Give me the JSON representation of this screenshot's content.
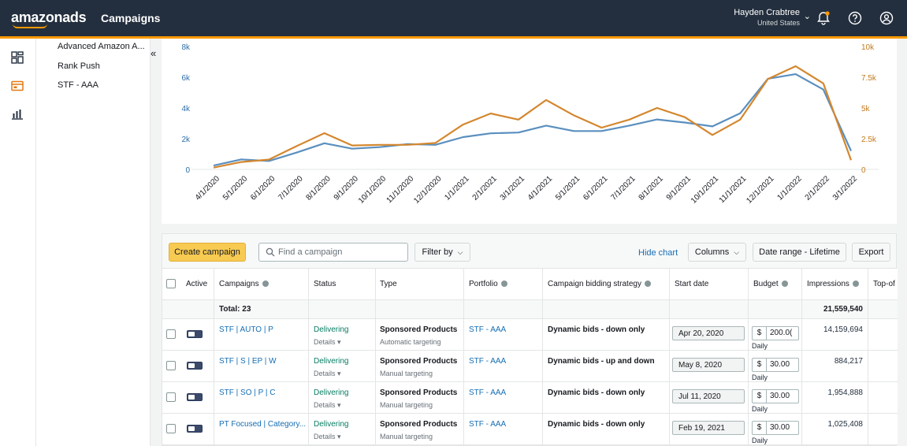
{
  "header": {
    "logo": "amazonads",
    "title": "Campaigns",
    "user_name": "Hayden Crabtree",
    "user_country": "United States"
  },
  "sidebar": {
    "items": [
      {
        "label": "Advanced Amazon A..."
      },
      {
        "label": "Rank Push"
      },
      {
        "label": "STF - AAA"
      }
    ]
  },
  "chart_data": {
    "type": "line",
    "x": [
      "4/1/2020",
      "5/1/2020",
      "6/1/2020",
      "7/1/2020",
      "8/1/2020",
      "9/1/2020",
      "10/1/2020",
      "11/1/2020",
      "12/1/2020",
      "1/1/2021",
      "2/1/2021",
      "3/1/2021",
      "4/1/2021",
      "5/1/2021",
      "6/1/2021",
      "7/1/2021",
      "8/1/2021",
      "9/1/2021",
      "10/1/2021",
      "11/1/2021",
      "12/1/2021",
      "1/1/2022",
      "2/1/2022",
      "3/1/2022"
    ],
    "series": [
      {
        "axis": "left",
        "color": "#5a8fbf",
        "values": [
          250,
          650,
          550,
          1100,
          1700,
          1350,
          1450,
          1650,
          1600,
          2100,
          2350,
          2400,
          2850,
          2500,
          2500,
          2850,
          3250,
          3050,
          2800,
          3650,
          5900,
          6200,
          5200,
          1200
        ]
      },
      {
        "axis": "right",
        "color": "#d4872e",
        "values": [
          150,
          600,
          800,
          1900,
          2950,
          1950,
          2000,
          2000,
          2150,
          3650,
          4550,
          4050,
          5650,
          4400,
          3400,
          4050,
          5000,
          4250,
          2800,
          4050,
          7350,
          8400,
          7000,
          750
        ]
      }
    ],
    "y_left": {
      "min": 0,
      "max": 8000,
      "ticks": [
        "0",
        "2k",
        "4k",
        "6k",
        "8k"
      ]
    },
    "y_right": {
      "min": 0,
      "max": 10000,
      "ticks": [
        "0",
        "2.5k",
        "5k",
        "7.5k",
        "10k"
      ]
    }
  },
  "toolbar": {
    "create_label": "Create campaign",
    "search_placeholder": "Find a campaign",
    "filter_label": "Filter by",
    "hide_chart_label": "Hide chart",
    "columns_label": "Columns",
    "date_range_label": "Date range - Lifetime",
    "export_label": "Export"
  },
  "table": {
    "columns": {
      "active": "Active",
      "campaigns": "Campaigns",
      "status": "Status",
      "type": "Type",
      "portfolio": "Portfolio",
      "strategy": "Campaign bidding strategy",
      "start_date": "Start date",
      "budget": "Budget",
      "impressions": "Impressions",
      "top": "Top-of"
    },
    "total_label": "Total: 23",
    "total_impressions": "21,559,540",
    "rows": [
      {
        "name": "STF | AUTO | P",
        "status": "Delivering",
        "details": "Details ▾",
        "type": "Sponsored Products",
        "targeting": "Automatic targeting",
        "portfolio": "STF - AAA",
        "strategy": "Dynamic bids - down only",
        "start": "Apr 20, 2020",
        "currency": "$",
        "budget": "200.0(",
        "budget_type": "Daily",
        "impressions": "14,159,694"
      },
      {
        "name": "STF | S | EP | W",
        "status": "Delivering",
        "details": "Details ▾",
        "type": "Sponsored Products",
        "targeting": "Manual targeting",
        "portfolio": "STF - AAA",
        "strategy": "Dynamic bids - up and down",
        "start": "May 8, 2020",
        "currency": "$",
        "budget": "30.00",
        "budget_type": "Daily",
        "impressions": "884,217"
      },
      {
        "name": "STF | SO | P | C",
        "status": "Delivering",
        "details": "Details ▾",
        "type": "Sponsored Products",
        "targeting": "Manual targeting",
        "portfolio": "STF - AAA",
        "strategy": "Dynamic bids - down only",
        "start": "Jul 11, 2020",
        "currency": "$",
        "budget": "30.00",
        "budget_type": "Daily",
        "impressions": "1,954,888"
      },
      {
        "name": "PT Focused | Category...",
        "status": "Delivering",
        "details": "Details ▾",
        "type": "Sponsored Products",
        "targeting": "Manual targeting",
        "portfolio": "STF - AAA",
        "strategy": "Dynamic bids - down only",
        "start": "Feb 19, 2021",
        "currency": "$",
        "budget": "30.00",
        "budget_type": "Daily",
        "impressions": "1,025,408"
      }
    ]
  }
}
